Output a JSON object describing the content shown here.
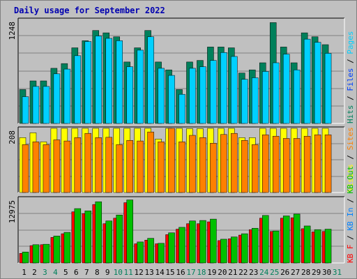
{
  "title": "Daily usage for September 2022",
  "colors": {
    "background": "#c0c0c0",
    "plot_bg": "#c0c0c0",
    "grid": "#808080",
    "title": "#0000b0",
    "hits": "#00805b",
    "files": "#0040ff",
    "pages": "#00d0ff",
    "visits": "#ffff00",
    "sites": "#ff8000",
    "kb_in": "#0080ff",
    "kb_out": "#00c000",
    "kb_f": "#ff0000",
    "weekend_day": "#00805b",
    "weekday_day": "#000000"
  },
  "chart_data": [
    {
      "type": "bar",
      "name_key": "top",
      "ytick": "1248",
      "ymax": 1248,
      "legend": [
        {
          "text": "Hits",
          "color": "#00805b"
        },
        {
          "text": "Files",
          "color": "#0040ff"
        },
        {
          "text": "Pages",
          "color": "#00d0ff"
        }
      ],
      "series": [
        {
          "name": "Hits",
          "values": [
            430,
            540,
            540,
            700,
            760,
            960,
            1050,
            1180,
            1150,
            1100,
            780,
            960,
            1180,
            780,
            680,
            430,
            780,
            800,
            970,
            970,
            960,
            640,
            680,
            770,
            1280,
            970,
            770,
            1150,
            1100,
            1000
          ]
        },
        {
          "name": "Pages",
          "values": [
            340,
            470,
            470,
            630,
            690,
            860,
            1040,
            1110,
            1080,
            1050,
            720,
            930,
            1100,
            700,
            610,
            370,
            700,
            720,
            800,
            900,
            850,
            560,
            580,
            660,
            770,
            880,
            680,
            1070,
            1030,
            890
          ]
        }
      ]
    },
    {
      "type": "bar",
      "name_key": "middle",
      "ytick": "208",
      "ymax": 208,
      "legend": [
        {
          "text": "Visits",
          "color": "#ffff00"
        },
        {
          "text": "Sites",
          "color": "#ff8000"
        }
      ],
      "series": [
        {
          "name": "Visits",
          "values": [
            195,
            212,
            180,
            247,
            255,
            255,
            230,
            255,
            240,
            240,
            232,
            232,
            283,
            190,
            267,
            247,
            227,
            227,
            247,
            283,
            280,
            195,
            195,
            255,
            255,
            262,
            262,
            263,
            255,
            250
          ]
        },
        {
          "name": "Sites",
          "values": [
            170,
            180,
            170,
            187,
            183,
            195,
            210,
            195,
            196,
            170,
            185,
            183,
            215,
            180,
            245,
            180,
            203,
            195,
            175,
            206,
            210,
            185,
            170,
            205,
            200,
            192,
            192,
            200,
            205,
            205
          ]
        }
      ]
    },
    {
      "type": "bar",
      "name_key": "bottom",
      "ytick": "12975",
      "ymax": 12975,
      "legend": [
        {
          "text": "KB F",
          "color": "#ff0000"
        },
        {
          "text": "KB In",
          "color": "#0080ff"
        },
        {
          "text": "KB Out",
          "color": "#00c000"
        }
      ],
      "series": [
        {
          "name": "KB F",
          "values": [
            2100,
            3800,
            4000,
            5600,
            6400,
            11200,
            10800,
            12800,
            8600,
            9800,
            13200,
            4200,
            5000,
            4200,
            6200,
            7400,
            8600,
            8600,
            9000,
            4900,
            5300,
            6100,
            7300,
            9800,
            6900,
            9800,
            9900,
            7500,
            6800,
            6900
          ]
        },
        {
          "name": "KB Out",
          "values": [
            2400,
            4000,
            4100,
            5900,
            6700,
            11900,
            11400,
            13400,
            9200,
            10500,
            13800,
            4600,
            5400,
            4300,
            6600,
            7800,
            9200,
            9300,
            9600,
            5200,
            5700,
            6400,
            7600,
            10400,
            7000,
            10300,
            10700,
            8100,
            7300,
            7400
          ]
        }
      ]
    }
  ],
  "days": [
    "1",
    "2",
    "3",
    "4",
    "5",
    "6",
    "7",
    "8",
    "9",
    "10",
    "11",
    "12",
    "13",
    "14",
    "15",
    "16",
    "17",
    "18",
    "19",
    "20",
    "21",
    "22",
    "23",
    "24",
    "25",
    "26",
    "27",
    "28",
    "29",
    "30",
    "31"
  ],
  "weekend_days": [
    3,
    4,
    10,
    11,
    17,
    18,
    24,
    25,
    31
  ]
}
